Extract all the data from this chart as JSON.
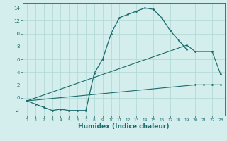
{
  "line1_x": [
    0,
    1,
    2,
    3,
    4,
    5,
    6,
    7,
    8,
    9,
    10,
    11,
    12,
    13,
    14,
    15,
    16,
    17,
    18,
    19
  ],
  "line1_y": [
    -0.5,
    -1.0,
    -1.5,
    -2.0,
    -1.8,
    -2.0,
    -2.0,
    -2.0,
    3.8,
    6.0,
    10.0,
    12.5,
    13.0,
    13.5,
    14.0,
    13.8,
    12.5,
    10.5,
    9.0,
    7.5
  ],
  "line2_x": [
    0,
    19,
    20,
    22,
    23
  ],
  "line2_y": [
    -0.5,
    8.2,
    7.2,
    7.2,
    3.7
  ],
  "line3_x": [
    0,
    20,
    21,
    22,
    23
  ],
  "line3_y": [
    -0.5,
    2.0,
    2.0,
    2.0,
    2.0
  ],
  "color": "#1a6b6b",
  "bg_color": "#d4eeed",
  "grid_color": "#aed6d4",
  "xlabel": "Humidex (Indice chaleur)",
  "xlim": [
    -0.5,
    23.5
  ],
  "ylim": [
    -2.8,
    14.8
  ],
  "yticks": [
    -2,
    0,
    2,
    4,
    6,
    8,
    10,
    12,
    14
  ],
  "xticks": [
    0,
    1,
    2,
    3,
    4,
    5,
    6,
    7,
    8,
    9,
    10,
    11,
    12,
    13,
    14,
    15,
    16,
    17,
    18,
    19,
    20,
    21,
    22,
    23
  ]
}
